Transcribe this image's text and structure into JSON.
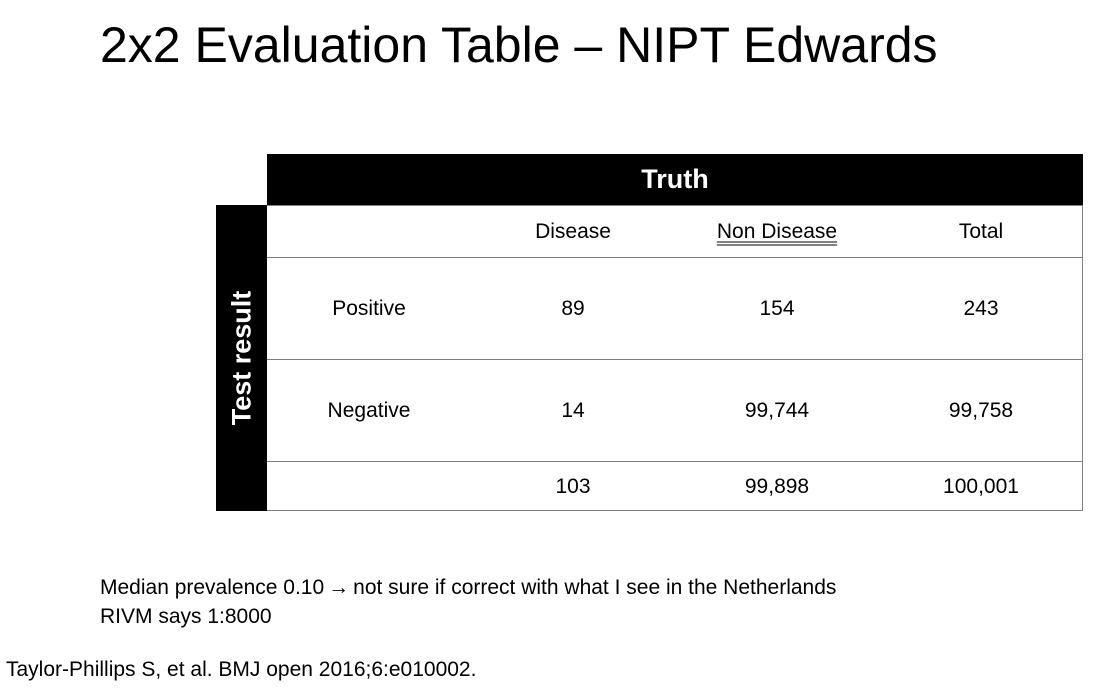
{
  "slide": {
    "title": "2x2 Evaluation Table – NIPT Edwards"
  },
  "table": {
    "column_group_label": "Truth",
    "row_group_label": "Test result",
    "columns": [
      "",
      "Disease",
      "Non Disease",
      "Total"
    ],
    "rows": [
      {
        "label": "Positive",
        "disease": "89",
        "non_disease": "154",
        "total": "243"
      },
      {
        "label": "Negative",
        "disease": "14",
        "non_disease": "99,744",
        "total": "99,758"
      },
      {
        "label": "",
        "disease": "103",
        "non_disease": "99,898",
        "total": "100,001"
      }
    ]
  },
  "notes": {
    "line1_before": "Median prevalence 0.10",
    "line1_arrow_icon": "right-arrow-icon",
    "line1_arrow_glyph": "→",
    "line1_after": "not sure if correct with what I see in the Netherlands",
    "line2": "RIVM says 1:8000"
  },
  "citation": "Taylor-Phillips S, et al. BMJ open 2016;6:e010002."
}
